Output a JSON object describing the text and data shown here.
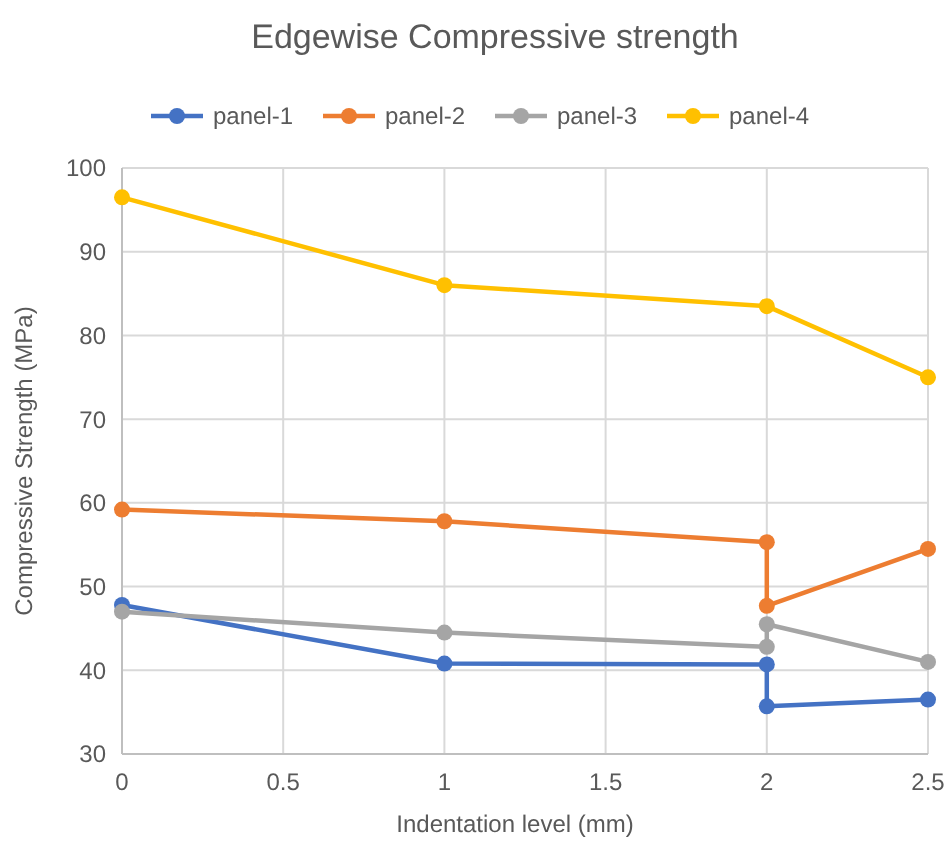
{
  "chart_data": {
    "type": "line",
    "title": "Edgewise Compressive strength",
    "xlabel": "Indentation level (mm)",
    "ylabel": "Compressive Strength (MPa)",
    "xlim": [
      0,
      2.5
    ],
    "xticks": [
      0,
      0.5,
      1,
      1.5,
      2,
      2.5
    ],
    "ylim": [
      30,
      100
    ],
    "yticks": [
      30,
      40,
      50,
      60,
      70,
      80,
      90,
      100
    ],
    "grid": true,
    "legend": "top",
    "marker": "circle",
    "series": [
      {
        "name": "panel-1",
        "color": "#4472c4",
        "x": [
          0,
          1,
          2,
          2,
          2.5
        ],
        "values": [
          47.8,
          40.8,
          40.7,
          35.7,
          36.5
        ]
      },
      {
        "name": "panel-2",
        "color": "#ed7d31",
        "x": [
          0,
          1,
          2,
          2,
          2.5
        ],
        "values": [
          59.2,
          57.8,
          55.3,
          47.7,
          54.5
        ]
      },
      {
        "name": "panel-3",
        "color": "#a5a5a5",
        "x": [
          0,
          1,
          2,
          2,
          2.5
        ],
        "values": [
          47,
          44.5,
          42.8,
          45.5,
          41
        ]
      },
      {
        "name": "panel-4",
        "color": "#ffc000",
        "x": [
          0,
          1,
          2,
          2.5
        ],
        "values": [
          96.5,
          86,
          83.5,
          75
        ]
      }
    ]
  }
}
